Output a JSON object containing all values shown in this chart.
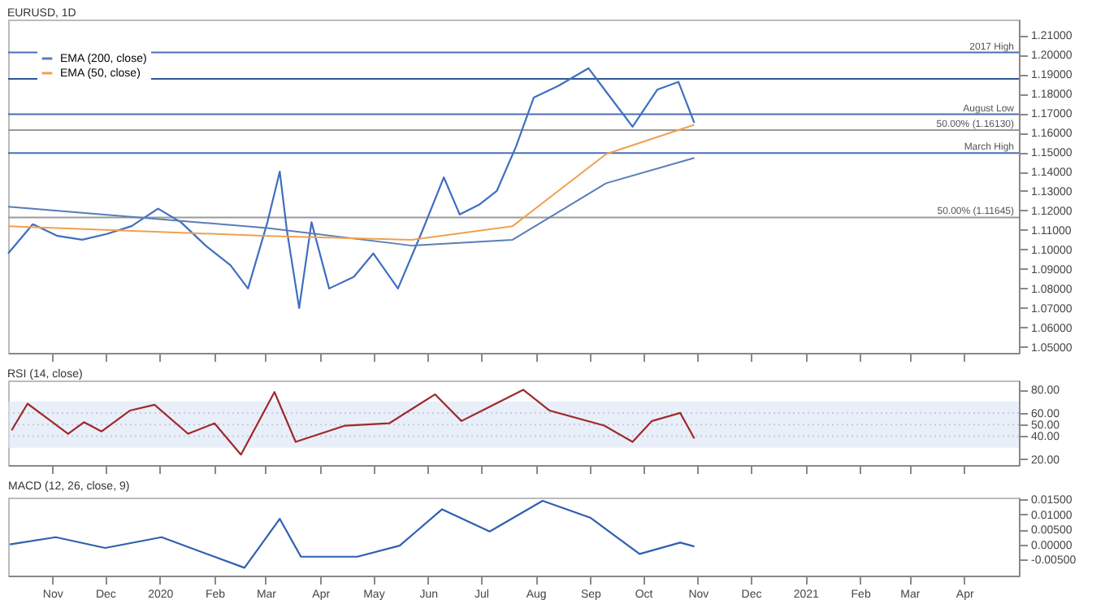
{
  "chart_data": [
    {
      "type": "line",
      "title": "EURUSD, 1D",
      "legend": "top left",
      "tick_labels": "y",
      "xlim": [
        "2019-10-07",
        "2021-05-02"
      ],
      "xticks": [
        {
          "value": "2019-11-01",
          "label": null
        },
        {
          "value": "2019-12-01",
          "label": null
        },
        {
          "value": "2020-01-01",
          "label": null
        },
        {
          "value": "2020-02-01",
          "label": null
        },
        {
          "value": "2020-03-01",
          "label": null
        },
        {
          "value": "2020-04-01",
          "label": null
        },
        {
          "value": "2020-05-01",
          "label": null
        },
        {
          "value": "2020-06-01",
          "label": null
        },
        {
          "value": "2020-07-01",
          "label": null
        },
        {
          "value": "2020-08-01",
          "label": null
        },
        {
          "value": "2020-09-01",
          "label": null
        },
        {
          "value": "2020-10-01",
          "label": null
        },
        {
          "value": "2020-11-01",
          "label": null
        },
        {
          "value": "2020-12-01",
          "label": null
        },
        {
          "value": "2021-01-01",
          "label": null
        },
        {
          "value": "2021-02-01",
          "label": null
        },
        {
          "value": "2021-03-01",
          "label": null
        },
        {
          "value": "2021-04-01",
          "label": null
        }
      ],
      "ylim": [
        1.047,
        1.218
      ],
      "yticks": [
        {
          "value": 1.05,
          "label": "1.05000"
        },
        {
          "value": 1.06,
          "label": "1.06000"
        },
        {
          "value": 1.07,
          "label": "1.07000"
        },
        {
          "value": 1.08,
          "label": "1.08000"
        },
        {
          "value": 1.09,
          "label": "1.09000"
        },
        {
          "value": 1.1,
          "label": "1.10000"
        },
        {
          "value": 1.11,
          "label": "1.11000"
        },
        {
          "value": 1.12,
          "label": "1.12000"
        },
        {
          "value": 1.13,
          "label": "1.13000"
        },
        {
          "value": 1.14,
          "label": "1.14000"
        },
        {
          "value": 1.15,
          "label": "1.15000"
        },
        {
          "value": 1.16,
          "label": "1.16000"
        },
        {
          "value": 1.17,
          "label": "1.17000"
        },
        {
          "value": 1.18,
          "label": "1.18000"
        },
        {
          "value": 1.19,
          "label": "1.19000"
        },
        {
          "value": 1.2,
          "label": "1.20000"
        },
        {
          "value": 1.21,
          "label": "1.21000"
        }
      ],
      "ref_lines": [
        {
          "axis": "y",
          "value": 1.2011,
          "label": "2017 High",
          "color": "#4a6fb5"
        },
        {
          "axis": "y",
          "value": 1.1876,
          "color": "#2f5597"
        },
        {
          "axis": "y",
          "value": 1.1694,
          "label": "August Low",
          "color": "#4a6fb5"
        },
        {
          "axis": "y",
          "value": 1.1613,
          "label": "50.00% (1.16130)",
          "color": "#999999"
        },
        {
          "axis": "y",
          "value": 1.1495,
          "label": "March High",
          "color": "#4a6fb5"
        },
        {
          "axis": "y",
          "value": 1.11645,
          "label": "50.00% (1.11645)",
          "color": "#999999"
        }
      ],
      "series": [
        {
          "type": "line",
          "color": "#3f6fbf",
          "x": [
            "2019-10-07",
            "2019-10-21",
            "2019-11-04",
            "2019-11-18",
            "2019-12-02",
            "2019-12-16",
            "2019-12-31",
            "2020-01-13",
            "2020-01-27",
            "2020-02-10",
            "2020-02-20",
            "2020-03-02",
            "2020-03-09",
            "2020-03-13",
            "2020-03-20",
            "2020-03-27",
            "2020-04-06",
            "2020-04-20",
            "2020-05-01",
            "2020-05-15",
            "2020-05-29",
            "2020-06-10",
            "2020-06-19",
            "2020-06-30",
            "2020-07-10",
            "2020-07-21",
            "2020-07-31",
            "2020-08-14",
            "2020-08-31",
            "2020-09-10",
            "2020-09-25",
            "2020-10-09",
            "2020-10-21",
            "2020-10-30"
          ],
          "values": [
            1.098,
            1.113,
            1.107,
            1.105,
            1.108,
            1.112,
            1.121,
            1.114,
            1.102,
            1.092,
            1.08,
            1.114,
            1.14,
            1.11,
            1.07,
            1.114,
            1.08,
            1.086,
            1.098,
            1.08,
            1.11,
            1.137,
            1.118,
            1.123,
            1.13,
            1.153,
            1.178,
            1.184,
            1.193,
            1.181,
            1.163,
            1.182,
            1.186,
            1.165
          ]
        },
        {
          "type": "line",
          "name": "EMA (200, close)",
          "color": "#5b7db8",
          "x": [
            "2019-10-07",
            "2020-03-02",
            "2020-05-23",
            "2020-07-19",
            "2020-09-10",
            "2020-10-30"
          ],
          "values": [
            1.122,
            1.111,
            1.102,
            1.105,
            1.134,
            1.147
          ]
        },
        {
          "type": "line",
          "name": "EMA (50, close)",
          "color": "#f0a050",
          "x": [
            "2019-10-07",
            "2020-03-02",
            "2020-05-23",
            "2020-07-19",
            "2020-09-10",
            "2020-10-30"
          ],
          "values": [
            1.112,
            1.107,
            1.105,
            1.112,
            1.149,
            1.164
          ]
        }
      ]
    },
    {
      "type": "line",
      "title": "RSI (14, close)",
      "tick_labels": "y",
      "xlim": [
        "2019-10-07",
        "2021-05-02"
      ],
      "xticks": [
        {
          "value": "2019-11-01",
          "label": null
        },
        {
          "value": "2019-12-01",
          "label": null
        },
        {
          "value": "2020-01-01",
          "label": null
        },
        {
          "value": "2020-02-01",
          "label": null
        },
        {
          "value": "2020-03-01",
          "label": null
        },
        {
          "value": "2020-04-01",
          "label": null
        },
        {
          "value": "2020-05-01",
          "label": null
        },
        {
          "value": "2020-06-01",
          "label": null
        },
        {
          "value": "2020-07-01",
          "label": null
        },
        {
          "value": "2020-08-01",
          "label": null
        },
        {
          "value": "2020-09-01",
          "label": null
        },
        {
          "value": "2020-10-01",
          "label": null
        },
        {
          "value": "2020-11-01",
          "label": null
        },
        {
          "value": "2020-12-01",
          "label": null
        },
        {
          "value": "2021-01-01",
          "label": null
        },
        {
          "value": "2021-02-01",
          "label": null
        },
        {
          "value": "2021-03-01",
          "label": null
        },
        {
          "value": "2021-04-01",
          "label": null
        }
      ],
      "ylim": [
        15,
        88
      ],
      "yticks": [
        {
          "value": 20,
          "label": "20.00"
        },
        {
          "value": 40,
          "label": "40.00"
        },
        {
          "value": 50,
          "label": "50.00"
        },
        {
          "value": 60,
          "label": "60.00"
        },
        {
          "value": 80,
          "label": "80.00"
        }
      ],
      "bands": [
        {
          "axis": "y",
          "from": 30,
          "to": 70,
          "color": "#dbe5f3"
        }
      ],
      "ref_lines": [
        {
          "axis": "y",
          "value": 60,
          "color": "#a0a8b8",
          "line_style": "dotted"
        },
        {
          "axis": "y",
          "value": 50,
          "color": "#a0a8b8",
          "line_style": "dotted"
        },
        {
          "axis": "y",
          "value": 40,
          "color": "#a0a8b8",
          "line_style": "dotted"
        }
      ],
      "series": [
        {
          "type": "line",
          "color": "#a0282d",
          "x": [
            "2019-10-09",
            "2019-10-18",
            "2019-11-10",
            "2019-11-19",
            "2019-11-29",
            "2019-12-15",
            "2019-12-29",
            "2020-01-17",
            "2020-02-01",
            "2020-02-16",
            "2020-03-06",
            "2020-03-18",
            "2020-04-15",
            "2020-05-10",
            "2020-06-05",
            "2020-06-20",
            "2020-07-25",
            "2020-08-09",
            "2020-09-09",
            "2020-09-25",
            "2020-10-06",
            "2020-10-22",
            "2020-10-30"
          ],
          "values": [
            45,
            68,
            42,
            52,
            44,
            62,
            67,
            42,
            51,
            24,
            78,
            35,
            49,
            51,
            76,
            53,
            80,
            62,
            49,
            35,
            53,
            60,
            38
          ]
        }
      ]
    },
    {
      "type": "line",
      "title": "MACD (12, 26, close, 9)",
      "xlim": [
        "2019-10-07",
        "2021-05-02"
      ],
      "xticks": [
        {
          "value": "2019-11-01",
          "label": "Nov"
        },
        {
          "value": "2019-12-01",
          "label": "Dec"
        },
        {
          "value": "2020-01-01",
          "label": "2020"
        },
        {
          "value": "2020-02-01",
          "label": "Feb"
        },
        {
          "value": "2020-03-01",
          "label": "Mar"
        },
        {
          "value": "2020-04-01",
          "label": "Apr"
        },
        {
          "value": "2020-05-01",
          "label": "May"
        },
        {
          "value": "2020-06-01",
          "label": "Jun"
        },
        {
          "value": "2020-07-01",
          "label": "Jul"
        },
        {
          "value": "2020-08-01",
          "label": "Aug"
        },
        {
          "value": "2020-09-01",
          "label": "Sep"
        },
        {
          "value": "2020-10-01",
          "label": "Oct"
        },
        {
          "value": "2020-11-01",
          "label": "Nov"
        },
        {
          "value": "2020-12-01",
          "label": "Dec"
        },
        {
          "value": "2021-01-01",
          "label": "2021"
        },
        {
          "value": "2021-02-01",
          "label": "Feb"
        },
        {
          "value": "2021-03-01",
          "label": "Mar"
        },
        {
          "value": "2021-04-01",
          "label": "Apr"
        }
      ],
      "ylim": [
        -0.0104,
        0.0156
      ],
      "yticks": [
        {
          "value": -0.005,
          "label": "-0.00500"
        },
        {
          "value": 0,
          "label": "0.00000"
        },
        {
          "value": 0.005,
          "label": "0.00500"
        },
        {
          "value": 0.01,
          "label": "0.01000"
        },
        {
          "value": 0.015,
          "label": "0.01500"
        }
      ],
      "series": [
        {
          "type": "line",
          "color": "#2f5fb0",
          "x": [
            "2019-10-08",
            "2019-11-03",
            "2019-12-01",
            "2020-01-02",
            "2020-02-18",
            "2020-03-09",
            "2020-03-21",
            "2020-04-22",
            "2020-05-16",
            "2020-06-09",
            "2020-07-06",
            "2020-08-05",
            "2020-09-01",
            "2020-09-29",
            "2020-10-22",
            "2020-10-30"
          ],
          "values": [
            0,
            0.0024,
            -0.0012,
            0.0024,
            -0.0078,
            0.0085,
            -0.0041,
            -0.0041,
            -0.0004,
            0.0117,
            0.0043,
            0.0145,
            0.0089,
            -0.0032,
            0.0006,
            -0.0007
          ]
        }
      ]
    }
  ]
}
